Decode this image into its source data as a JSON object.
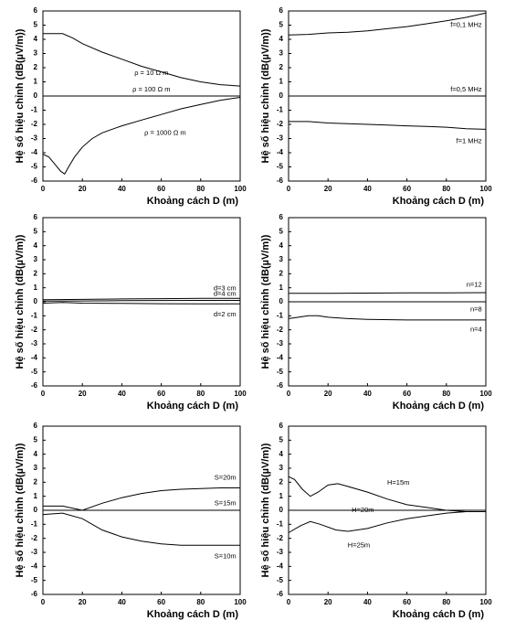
{
  "chart_data": [
    {
      "type": "line",
      "ylabel": "Hệ số hiệu chỉnh (dB(µV/m))",
      "xlabel": "Khoảng cách D (m)",
      "xlim": [
        0,
        100
      ],
      "xticks": [
        0,
        20,
        40,
        60,
        80,
        100
      ],
      "ylim": [
        -6,
        6
      ],
      "yticks": [
        -6,
        -5,
        -4,
        -3,
        -2,
        -1,
        0,
        1,
        2,
        3,
        4,
        5,
        6
      ],
      "series": [
        {
          "name": "ρ = 10  Ω m",
          "color": "#000000",
          "x": [
            0,
            5,
            10,
            15,
            20,
            30,
            40,
            50,
            60,
            70,
            80,
            90,
            100
          ],
          "values": [
            4.4,
            4.4,
            4.4,
            4.1,
            3.7,
            3.1,
            2.6,
            2.1,
            1.7,
            1.3,
            1.0,
            0.8,
            0.7
          ]
        },
        {
          "name": "ρ = 100  Ω m",
          "color": "#000000",
          "x": [
            0,
            20,
            40,
            60,
            80,
            100
          ],
          "values": [
            0,
            0,
            0,
            0,
            0,
            0
          ]
        },
        {
          "name": "ρ = 1000  Ω m",
          "color": "#000000",
          "x": [
            0,
            3,
            6,
            9,
            11,
            13,
            16,
            20,
            25,
            30,
            40,
            50,
            60,
            70,
            80,
            90,
            100
          ],
          "values": [
            -4.1,
            -4.3,
            -4.8,
            -5.3,
            -5.5,
            -5.0,
            -4.3,
            -3.6,
            -3.0,
            -2.6,
            -2.1,
            -1.7,
            -1.3,
            -0.9,
            -0.6,
            -0.3,
            -0.1
          ]
        }
      ]
    },
    {
      "type": "line",
      "ylabel": "Hệ số hiệu chỉnh (dB(µV/m))",
      "xlabel": "Khoảng cách D (m)",
      "xlim": [
        0,
        100
      ],
      "xticks": [
        0,
        20,
        40,
        60,
        80,
        100
      ],
      "ylim": [
        -6,
        6
      ],
      "yticks": [
        -6,
        -5,
        -4,
        -3,
        -2,
        -1,
        0,
        1,
        2,
        3,
        4,
        5,
        6
      ],
      "series": [
        {
          "name": "f=0,1 MHz",
          "color": "#000000",
          "x": [
            0,
            10,
            20,
            30,
            40,
            50,
            60,
            70,
            80,
            90,
            100
          ],
          "values": [
            4.3,
            4.35,
            4.45,
            4.5,
            4.6,
            4.75,
            4.9,
            5.1,
            5.3,
            5.55,
            5.85
          ]
        },
        {
          "name": "f=0,5 MHz",
          "color": "#000000",
          "x": [
            0,
            20,
            40,
            60,
            80,
            100
          ],
          "values": [
            0,
            0,
            0,
            0,
            0,
            0
          ]
        },
        {
          "name": "f=1 MHz",
          "color": "#000000",
          "x": [
            0,
            10,
            20,
            30,
            40,
            50,
            60,
            70,
            80,
            90,
            100
          ],
          "values": [
            -1.8,
            -1.8,
            -1.9,
            -1.95,
            -2.0,
            -2.05,
            -2.1,
            -2.15,
            -2.2,
            -2.3,
            -2.35
          ]
        }
      ]
    },
    {
      "type": "line",
      "ylabel": "Hệ số hiệu chỉnh (dB(µV/m))",
      "xlabel": "Khoảng cách D (m)",
      "xlim": [
        0,
        100
      ],
      "xticks": [
        0,
        20,
        40,
        60,
        80,
        100
      ],
      "ylim": [
        -6,
        6
      ],
      "yticks": [
        -6,
        -5,
        -4,
        -3,
        -2,
        -1,
        0,
        1,
        2,
        3,
        4,
        5,
        6
      ],
      "series": [
        {
          "name": "d=3 cm",
          "color": "#000000",
          "x": [
            0,
            20,
            40,
            60,
            80,
            100
          ],
          "values": [
            0.15,
            0.17,
            0.2,
            0.22,
            0.24,
            0.25
          ]
        },
        {
          "name": "d=4 cm",
          "color": "#000000",
          "x": [
            0,
            20,
            40,
            60,
            80,
            100
          ],
          "values": [
            0.05,
            0.06,
            0.08,
            0.09,
            0.1,
            0.1
          ]
        },
        {
          "name": "d=2 cm",
          "color": "#000000",
          "x": [
            0,
            10,
            20,
            40,
            60,
            80,
            100
          ],
          "values": [
            -0.1,
            -0.05,
            -0.1,
            -0.12,
            -0.14,
            -0.15,
            -0.15
          ]
        }
      ]
    },
    {
      "type": "line",
      "ylabel": "Hệ số hiệu chỉnh (dB(µV/m))",
      "xlabel": "Khoảng cách D (m)",
      "xlim": [
        0,
        100
      ],
      "xticks": [
        0,
        20,
        40,
        60,
        80,
        100
      ],
      "ylim": [
        -6,
        6
      ],
      "yticks": [
        -6,
        -5,
        -4,
        -3,
        -2,
        -1,
        0,
        1,
        2,
        3,
        4,
        5,
        6
      ],
      "series": [
        {
          "name": "n=12",
          "color": "#000000",
          "x": [
            0,
            20,
            40,
            60,
            80,
            100
          ],
          "values": [
            0.6,
            0.6,
            0.62,
            0.63,
            0.64,
            0.65
          ]
        },
        {
          "name": "n=8",
          "color": "#000000",
          "x": [
            0,
            20,
            40,
            60,
            80,
            100
          ],
          "values": [
            0,
            0,
            0,
            0,
            0,
            0
          ]
        },
        {
          "name": "n=4",
          "color": "#000000",
          "x": [
            0,
            5,
            10,
            15,
            20,
            30,
            40,
            60,
            80,
            100
          ],
          "values": [
            -1.2,
            -1.1,
            -1.0,
            -1.0,
            -1.1,
            -1.2,
            -1.25,
            -1.3,
            -1.3,
            -1.3
          ]
        }
      ]
    },
    {
      "type": "line",
      "ylabel": "Hệ số hiệu chỉnh (dB(µV/m))",
      "xlabel": "Khoảng cách D (m)",
      "xlim": [
        0,
        100
      ],
      "xticks": [
        0,
        20,
        40,
        60,
        80,
        100
      ],
      "ylim": [
        -6,
        6
      ],
      "yticks": [
        -6,
        -5,
        -4,
        -3,
        -2,
        -1,
        0,
        1,
        2,
        3,
        4,
        5,
        6
      ],
      "series": [
        {
          "name": "S=20m",
          "color": "#000000",
          "x": [
            0,
            10,
            20,
            30,
            40,
            50,
            60,
            70,
            80,
            90,
            100
          ],
          "values": [
            0.3,
            0.3,
            0,
            0.5,
            0.9,
            1.2,
            1.4,
            1.5,
            1.55,
            1.6,
            1.6
          ]
        },
        {
          "name": "S=15m",
          "color": "#000000",
          "x": [
            0,
            20,
            40,
            60,
            80,
            100
          ],
          "values": [
            0,
            0,
            0,
            0,
            0,
            0
          ]
        },
        {
          "name": "S=10m",
          "color": "#000000",
          "x": [
            0,
            10,
            20,
            30,
            40,
            50,
            60,
            70,
            80,
            90,
            100
          ],
          "values": [
            -0.3,
            -0.2,
            -0.6,
            -1.4,
            -1.9,
            -2.2,
            -2.4,
            -2.5,
            -2.5,
            -2.5,
            -2.5
          ]
        }
      ]
    },
    {
      "type": "line",
      "ylabel": "Hệ số hiệu chỉnh (dB(µV/m))",
      "xlabel": "Khoảng cách D (m)",
      "xlim": [
        0,
        100
      ],
      "xticks": [
        0,
        20,
        40,
        60,
        80,
        100
      ],
      "ylim": [
        -6,
        6
      ],
      "yticks": [
        -6,
        -5,
        -4,
        -3,
        -2,
        -1,
        0,
        1,
        2,
        3,
        4,
        5,
        6
      ],
      "series": [
        {
          "name": "H=15m",
          "color": "#000000",
          "x": [
            0,
            3,
            7,
            11,
            15,
            20,
            25,
            30,
            40,
            50,
            60,
            70,
            80,
            90,
            100
          ],
          "values": [
            2.4,
            2.2,
            1.5,
            1.0,
            1.3,
            1.8,
            1.9,
            1.7,
            1.3,
            0.8,
            0.4,
            0.2,
            0.0,
            -0.1,
            -0.1
          ]
        },
        {
          "name": "H=20m",
          "color": "#000000",
          "x": [
            0,
            20,
            40,
            60,
            80,
            100
          ],
          "values": [
            0,
            0,
            0,
            0,
            0,
            0
          ]
        },
        {
          "name": "H=25m",
          "color": "#000000",
          "x": [
            0,
            6,
            11,
            16,
            24,
            30,
            40,
            50,
            60,
            70,
            80,
            90,
            100
          ],
          "values": [
            -1.6,
            -1.1,
            -0.8,
            -1.0,
            -1.4,
            -1.5,
            -1.3,
            -0.9,
            -0.6,
            -0.4,
            -0.2,
            -0.1,
            -0.1
          ]
        }
      ]
    }
  ]
}
